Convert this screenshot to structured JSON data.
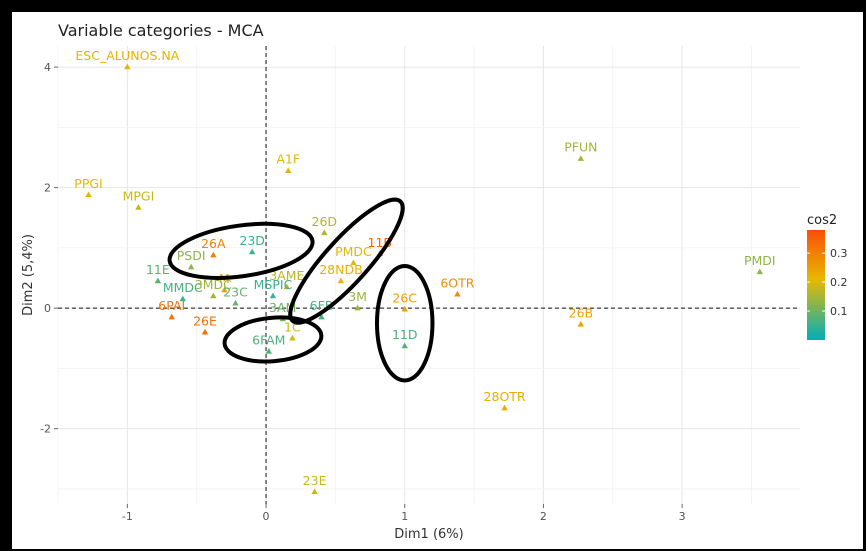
{
  "chart_data": {
    "type": "scatter",
    "title": "Variable categories - MCA",
    "xlabel": "Dim1 (6%)",
    "ylabel": "Dim2 (5,4%)",
    "xlim": [
      -1.5,
      3.85
    ],
    "ylim": [
      -3.25,
      4.35
    ],
    "x_ticks": [
      -1,
      0,
      1,
      2,
      3
    ],
    "y_ticks": [
      -2,
      0,
      2,
      4
    ],
    "grid": true,
    "reference_lines": {
      "x": 0,
      "y": 0,
      "style": "dashed"
    },
    "legend": {
      "title": "cos2",
      "position": "right",
      "ticks": [
        0.1,
        0.2,
        0.3
      ],
      "range": [
        0.0,
        0.38
      ]
    },
    "color_scale": [
      "#00AFBB",
      "#E7B800",
      "#FC4E07"
    ],
    "points": [
      {
        "label": "ESC_ALUNOS.NA",
        "x": -1.0,
        "y": 4.0,
        "cos2": 0.22
      },
      {
        "label": "PPGI",
        "x": -1.28,
        "y": 1.88,
        "cos2": 0.21
      },
      {
        "label": "MPGI",
        "x": -0.92,
        "y": 1.67,
        "cos2": 0.18
      },
      {
        "label": "A1F",
        "x": 0.16,
        "y": 2.28,
        "cos2": 0.2
      },
      {
        "label": "PFUN",
        "x": 2.27,
        "y": 2.48,
        "cos2": 0.15
      },
      {
        "label": "PMDI",
        "x": 3.56,
        "y": 0.6,
        "cos2": 0.13
      },
      {
        "label": "26D",
        "x": 0.42,
        "y": 1.25,
        "cos2": 0.16
      },
      {
        "label": "26A",
        "x": -0.38,
        "y": 0.88,
        "cos2": 0.3
      },
      {
        "label": "23D",
        "x": -0.1,
        "y": 0.93,
        "cos2": 0.05
      },
      {
        "label": "PMDC",
        "x": 0.63,
        "y": 0.75,
        "cos2": 0.2
      },
      {
        "label": "11B",
        "x": 0.82,
        "y": 0.9,
        "cos2": 0.35
      },
      {
        "label": "28NDB",
        "x": 0.54,
        "y": 0.45,
        "cos2": 0.22
      },
      {
        "label": "11E",
        "x": -0.78,
        "y": 0.45,
        "cos2": 0.08
      },
      {
        "label": "PSDI",
        "x": -0.54,
        "y": 0.68,
        "cos2": 0.13
      },
      {
        "label": "M",
        "x": -0.3,
        "y": 0.3,
        "cos2": 0.25
      },
      {
        "label": "6OTR",
        "x": 1.38,
        "y": 0.23,
        "cos2": 0.28
      },
      {
        "label": "26C",
        "x": 1.0,
        "y": -0.02,
        "cos2": 0.25
      },
      {
        "label": "26B",
        "x": 2.27,
        "y": -0.27,
        "cos2": 0.24
      },
      {
        "label": "11D",
        "x": 1.0,
        "y": -0.63,
        "cos2": 0.07
      },
      {
        "label": "28OTR",
        "x": 1.72,
        "y": -1.66,
        "cos2": 0.23
      },
      {
        "label": "23E",
        "x": 0.35,
        "y": -3.05,
        "cos2": 0.18
      },
      {
        "label": "6PAI",
        "x": -0.68,
        "y": -0.15,
        "cos2": 0.32
      },
      {
        "label": "26E",
        "x": -0.44,
        "y": -0.4,
        "cos2": 0.33
      },
      {
        "label": "6FAM",
        "x": 0.02,
        "y": -0.72,
        "cos2": 0.07
      },
      {
        "label": "MMDC",
        "x": -0.6,
        "y": 0.15,
        "cos2": 0.06
      },
      {
        "label": "3MDC",
        "x": -0.38,
        "y": 0.2,
        "cos2": 0.14
      },
      {
        "label": "23C",
        "x": -0.22,
        "y": 0.08,
        "cos2": 0.09
      },
      {
        "label": "3AME",
        "x": 0.15,
        "y": 0.35,
        "cos2": 0.17
      },
      {
        "label": "MSPIC",
        "x": 0.05,
        "y": 0.2,
        "cos2": 0.05
      },
      {
        "label": "1C",
        "x": 0.19,
        "y": -0.5,
        "cos2": 0.19
      },
      {
        "label": "3M",
        "x": 0.66,
        "y": 0.0,
        "cos2": 0.14
      },
      {
        "label": "3AM",
        "x": 0.12,
        "y": -0.18,
        "cos2": 0.1
      },
      {
        "label": "6FB",
        "x": 0.4,
        "y": -0.15,
        "cos2": 0.06
      }
    ],
    "ellipses": [
      {
        "cx": -0.18,
        "cy": 0.95,
        "rx": 0.52,
        "ry": 0.42,
        "angle": -8
      },
      {
        "cx": 0.58,
        "cy": 0.78,
        "rx": 0.58,
        "ry": 0.36,
        "angle": -48
      },
      {
        "cx": 0.05,
        "cy": -0.52,
        "rx": 0.35,
        "ry": 0.36,
        "angle": -5
      },
      {
        "cx": 1.0,
        "cy": -0.25,
        "rx": 0.2,
        "ry": 0.95,
        "angle": 0
      }
    ]
  }
}
